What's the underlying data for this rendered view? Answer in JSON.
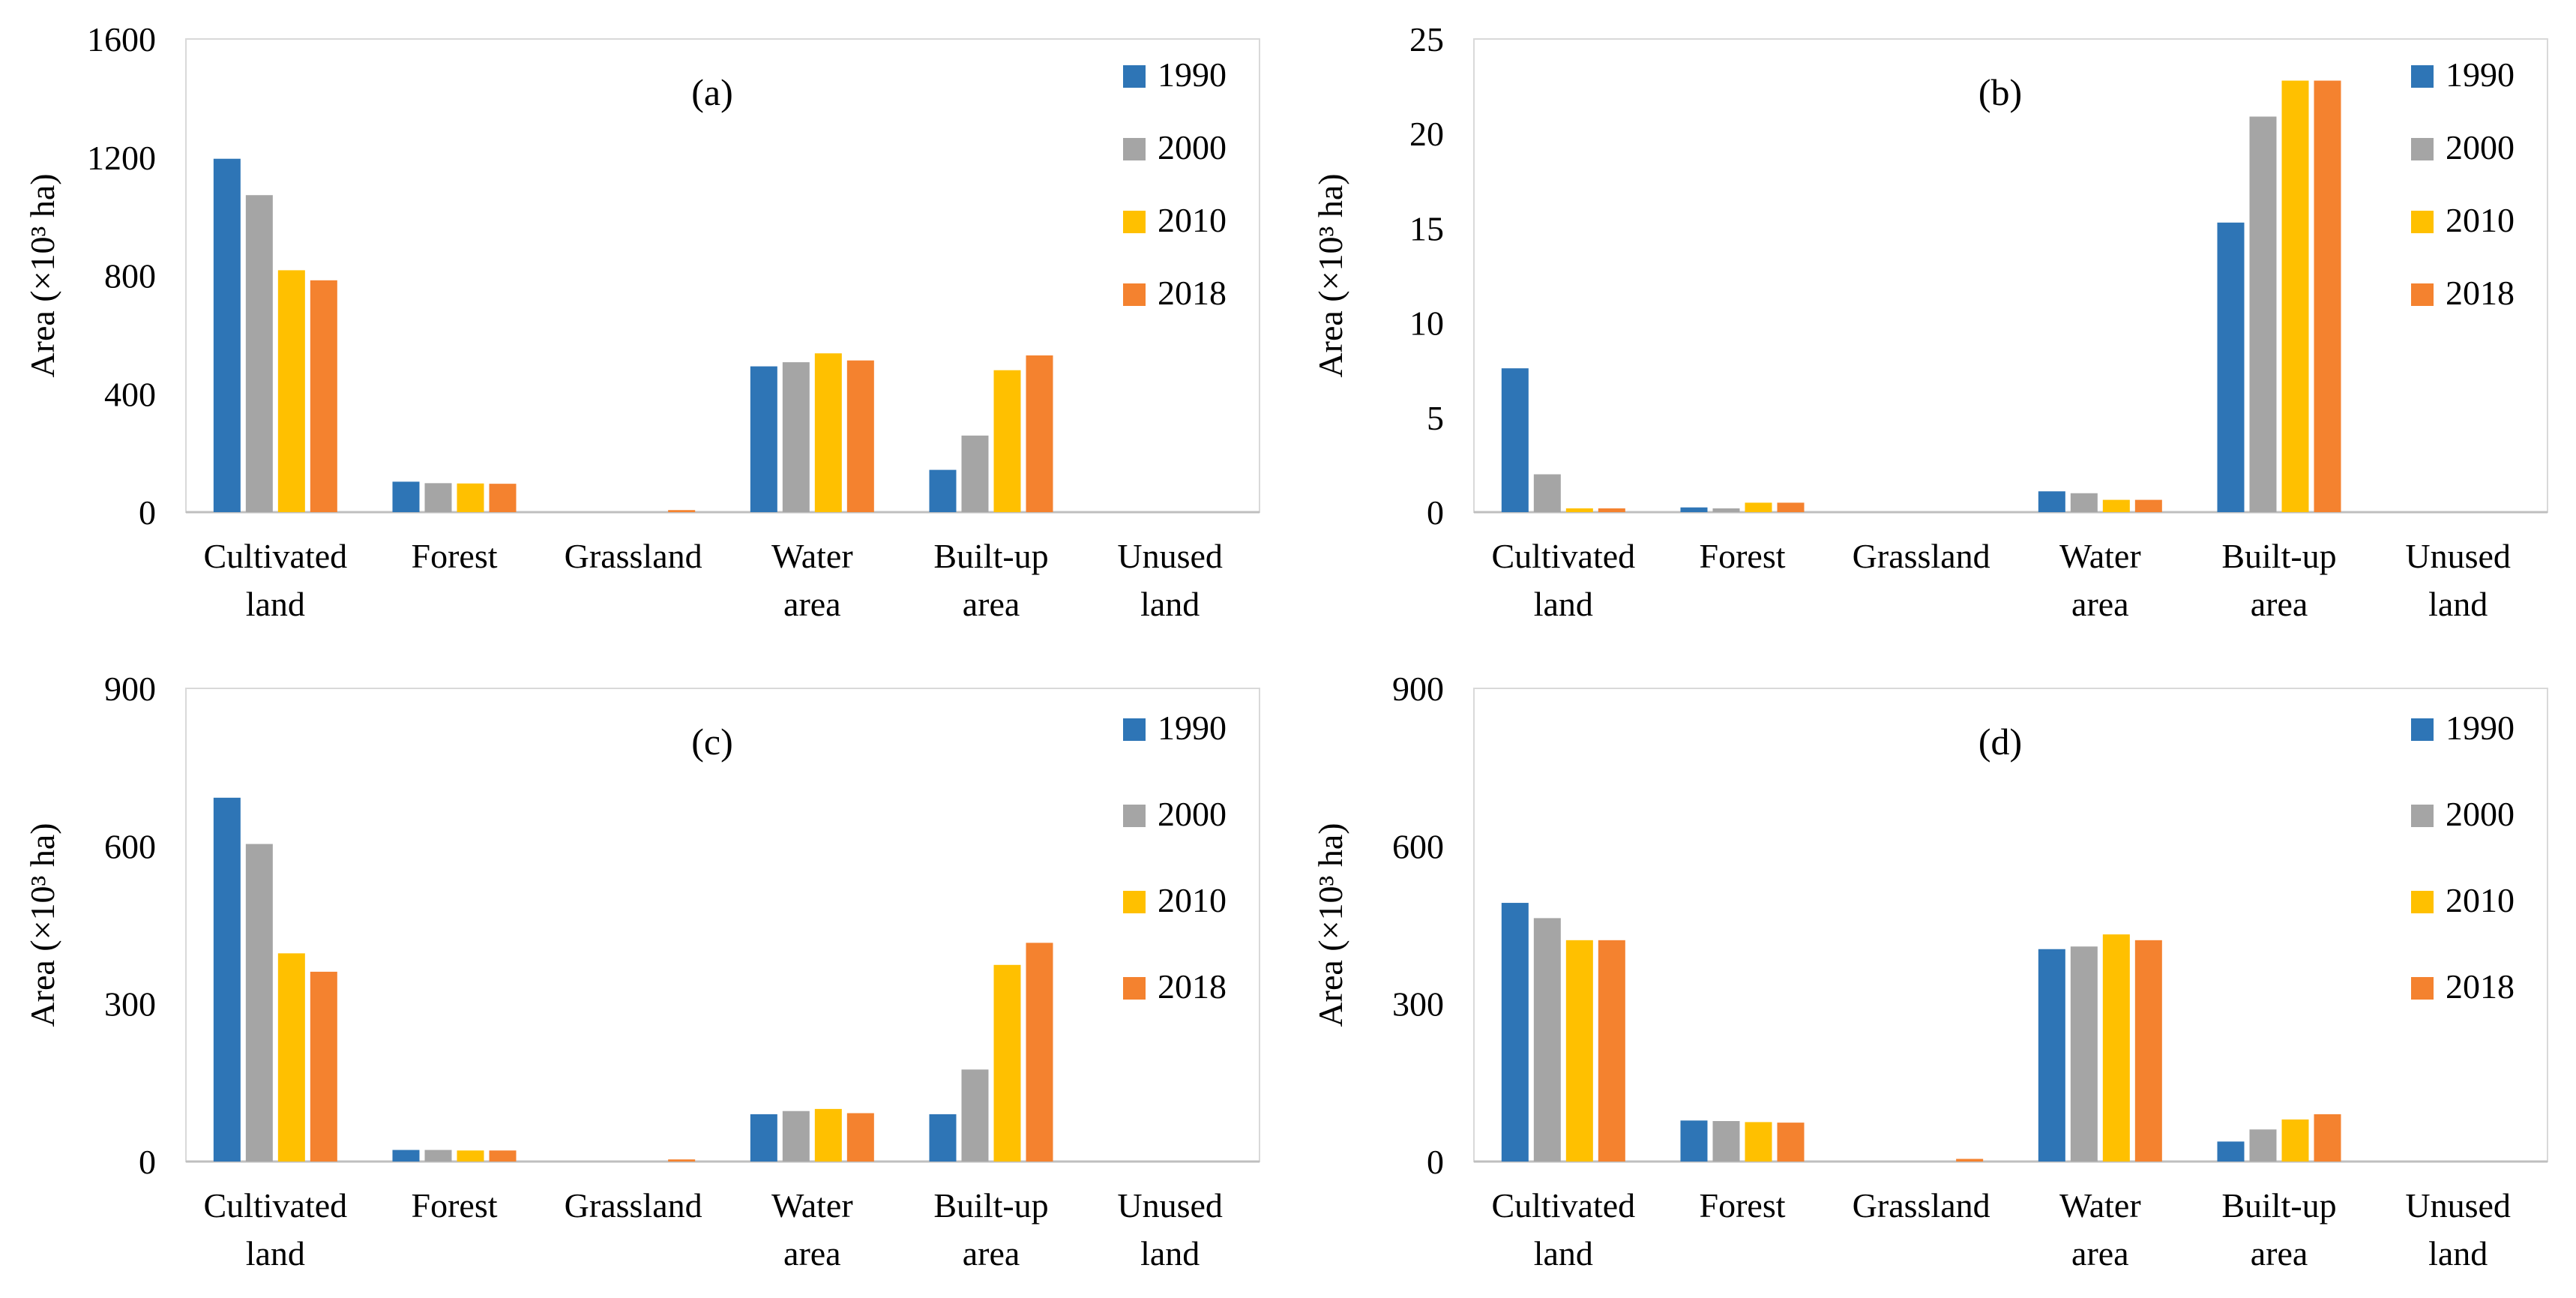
{
  "y_axis_label": "Area (×10³ ha)",
  "chart_data": [
    {
      "type": "bar",
      "panel_label": "(a)",
      "categories": [
        [
          "Cultivated",
          "land"
        ],
        [
          "Forest"
        ],
        [
          "Grassland"
        ],
        [
          "Water",
          "area"
        ],
        [
          "Built-up",
          "area"
        ],
        [
          "Unused",
          "land"
        ]
      ],
      "ylim": [
        0,
        1600
      ],
      "yticks": [
        "0",
        "400",
        "800",
        "1200",
        "1600"
      ],
      "legend_position": "top-right",
      "series": [
        {
          "name": "1990",
          "color": "#2e75b6",
          "values": [
            1195,
            103,
            0,
            493,
            143,
            0
          ]
        },
        {
          "name": "2000",
          "color": "#a5a5a5",
          "values": [
            1072,
            98,
            0,
            507,
            259,
            0
          ]
        },
        {
          "name": "2010",
          "color": "#ffc000",
          "values": [
            818,
            97,
            0,
            537,
            480,
            0
          ]
        },
        {
          "name": "2018",
          "color": "#f4822f",
          "values": [
            784,
            96,
            7,
            513,
            530,
            0
          ]
        }
      ]
    },
    {
      "type": "bar",
      "panel_label": "(b)",
      "categories": [
        [
          "Cultivated",
          "land"
        ],
        [
          "Forest"
        ],
        [
          "Grassland"
        ],
        [
          "Water",
          "area"
        ],
        [
          "Built-up",
          "area"
        ],
        [
          "Unused",
          "land"
        ]
      ],
      "ylim": [
        0,
        25
      ],
      "yticks": [
        "0",
        "5",
        "10",
        "15",
        "20",
        "25"
      ],
      "legend_position": "top-right",
      "series": [
        {
          "name": "1990",
          "color": "#2e75b6",
          "values": [
            7.6,
            0.25,
            0,
            1.1,
            15.3,
            0
          ]
        },
        {
          "name": "2000",
          "color": "#a5a5a5",
          "values": [
            2.0,
            0.2,
            0,
            1.0,
            20.9,
            0
          ]
        },
        {
          "name": "2010",
          "color": "#ffc000",
          "values": [
            0.2,
            0.5,
            0,
            0.65,
            22.8,
            0
          ]
        },
        {
          "name": "2018",
          "color": "#f4822f",
          "values": [
            0.2,
            0.5,
            0,
            0.65,
            22.8,
            0
          ]
        }
      ]
    },
    {
      "type": "bar",
      "panel_label": "(c)",
      "categories": [
        [
          "Cultivated",
          "land"
        ],
        [
          "Forest"
        ],
        [
          "Grassland"
        ],
        [
          "Water",
          "area"
        ],
        [
          "Built-up",
          "area"
        ],
        [
          "Unused",
          "land"
        ]
      ],
      "ylim": [
        0,
        900
      ],
      "yticks": [
        "0",
        "300",
        "600",
        "900"
      ],
      "legend_position": "top-right",
      "series": [
        {
          "name": "1990",
          "color": "#2e75b6",
          "values": [
            692,
            22,
            0,
            90,
            90,
            0
          ]
        },
        {
          "name": "2000",
          "color": "#a5a5a5",
          "values": [
            604,
            22,
            0,
            96,
            175,
            0
          ]
        },
        {
          "name": "2010",
          "color": "#ffc000",
          "values": [
            396,
            21,
            0,
            100,
            374,
            0
          ]
        },
        {
          "name": "2018",
          "color": "#f4822f",
          "values": [
            361,
            21,
            4,
            92,
            416,
            0
          ]
        }
      ]
    },
    {
      "type": "bar",
      "panel_label": "(d)",
      "categories": [
        [
          "Cultivated",
          "land"
        ],
        [
          "Forest"
        ],
        [
          "Grassland"
        ],
        [
          "Water",
          "area"
        ],
        [
          "Built-up",
          "area"
        ],
        [
          "Unused",
          "land"
        ]
      ],
      "ylim": [
        0,
        900
      ],
      "yticks": [
        "0",
        "300",
        "600",
        "900"
      ],
      "legend_position": "top-right",
      "series": [
        {
          "name": "1990",
          "color": "#2e75b6",
          "values": [
            492,
            78,
            0,
            404,
            38,
            0
          ]
        },
        {
          "name": "2000",
          "color": "#a5a5a5",
          "values": [
            463,
            77,
            0,
            409,
            61,
            0
          ]
        },
        {
          "name": "2010",
          "color": "#ffc000",
          "values": [
            421,
            75,
            0,
            432,
            80,
            0
          ]
        },
        {
          "name": "2018",
          "color": "#f4822f",
          "values": [
            421,
            74,
            5,
            421,
            90,
            0
          ]
        }
      ]
    }
  ]
}
